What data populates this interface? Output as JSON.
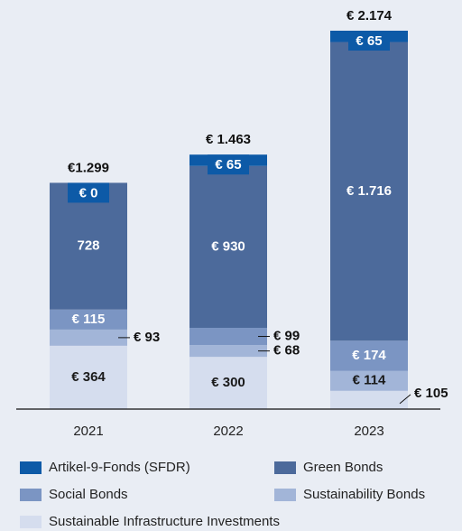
{
  "chart_data": {
    "type": "stacked-bar",
    "categories": [
      "2021",
      "2022",
      "2023"
    ],
    "series": [
      {
        "name": "Artikel-9-Fonds (SFDR)",
        "color": "#0d5aa7",
        "values": [
          0,
          65,
          65
        ],
        "value_labels": [
          "€ 0",
          "€ 65",
          "€ 65"
        ]
      },
      {
        "name": "Green Bonds",
        "color": "#4c6a9b",
        "values": [
          728,
          930,
          1716
        ],
        "value_labels": [
          "728",
          "€ 930",
          "€ 1.716"
        ]
      },
      {
        "name": "Social Bonds",
        "color": "#7b95c3",
        "values": [
          115,
          99,
          174
        ],
        "value_labels": [
          "€ 115",
          "€ 99",
          "€ 174"
        ]
      },
      {
        "name": "Sustainability Bonds",
        "color": "#a2b5d8",
        "values": [
          93,
          68,
          114
        ],
        "value_labels": [
          "€ 93",
          "€ 68",
          "€ 114"
        ]
      },
      {
        "name": "Sustainable Infrastructure Investments",
        "color": "#d5ddee",
        "values": [
          364,
          300,
          105
        ],
        "value_labels": [
          "€ 364",
          "€ 300",
          "€ 105"
        ]
      }
    ],
    "totals": {
      "values": [
        1299,
        1463,
        2174
      ],
      "value_labels": [
        "€1.299",
        "€ 1.463",
        "€ 2.174"
      ]
    }
  }
}
